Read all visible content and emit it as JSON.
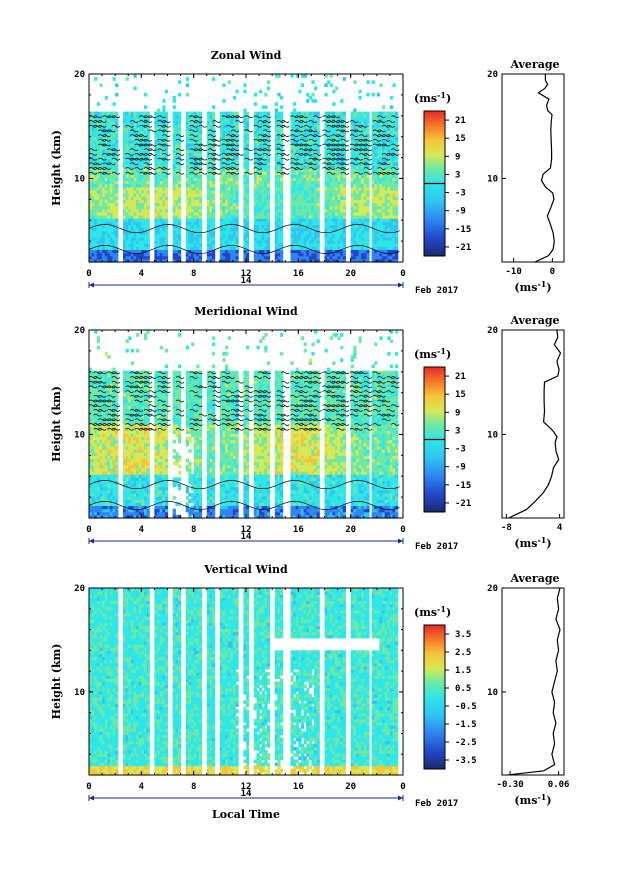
{
  "chart_data": [
    {
      "type": "heatmap",
      "title": "Zonal Wind",
      "ylabel": "Height (km)",
      "ylim": [
        2,
        20
      ],
      "yticks": [
        "20",
        "10"
      ],
      "xlim": [
        0,
        24
      ],
      "xticks": [
        "0",
        "4",
        "8",
        "12",
        "16",
        "20",
        "0"
      ],
      "date_label": "14",
      "month_label": "Feb 2017",
      "colorbar": {
        "unit": "(ms",
        "unit_sup": "-1",
        "unit_close": ")",
        "ticks": [
          "21",
          "15",
          "9",
          "3",
          "-3",
          "-9",
          "-15",
          "-21"
        ],
        "range": [
          -24,
          24
        ],
        "zero_line": 0
      },
      "average_panel": {
        "title": "Average",
        "xlabel": "(ms",
        "xlabel_sup": "-1",
        "xlabel_close": ")",
        "xticks": [
          "-10",
          "0"
        ],
        "xlim": [
          -13,
          3
        ],
        "yticks": [
          "20",
          "10"
        ],
        "profile": [
          [
            2.0,
            -4.5
          ],
          [
            2.6,
            -1
          ],
          [
            3.2,
            0.2
          ],
          [
            4.0,
            0.5
          ],
          [
            4.8,
            0.2
          ],
          [
            5.6,
            -0.5
          ],
          [
            6.4,
            -1.3
          ],
          [
            7.2,
            -0.4
          ],
          [
            8.0,
            0.4
          ],
          [
            8.6,
            0.1
          ],
          [
            9.2,
            -1.8
          ],
          [
            9.8,
            -2.8
          ],
          [
            10.4,
            -2.4
          ],
          [
            11.0,
            -0.5
          ],
          [
            11.8,
            -0.2
          ],
          [
            12.6,
            -0.2
          ],
          [
            13.6,
            -0.3
          ],
          [
            14.6,
            -0.4
          ],
          [
            15.4,
            -0.3
          ],
          [
            16.1,
            -0.1
          ],
          [
            16.5,
            -1.2
          ],
          [
            17.0,
            -1.5
          ],
          [
            17.6,
            -0.9
          ],
          [
            18.2,
            -3.6
          ],
          [
            18.6,
            -2.0
          ],
          [
            19.0,
            -1.2
          ],
          [
            19.4,
            -1.8
          ],
          [
            20.0,
            -1.8
          ]
        ]
      }
    },
    {
      "type": "heatmap",
      "title": "Meridional Wind",
      "ylabel": "Height (km)",
      "ylim": [
        2,
        20
      ],
      "yticks": [
        "20",
        "10"
      ],
      "xlim": [
        0,
        24
      ],
      "xticks": [
        "0",
        "4",
        "8",
        "12",
        "16",
        "20",
        "0"
      ],
      "date_label": "14",
      "month_label": "Feb 2017",
      "colorbar": {
        "unit": "(ms",
        "unit_sup": "-1",
        "unit_close": ")",
        "ticks": [
          "21",
          "15",
          "9",
          "3",
          "-3",
          "-9",
          "-15",
          "-21"
        ],
        "range": [
          -24,
          24
        ],
        "zero_line": 0
      },
      "average_panel": {
        "title": "Average",
        "xlabel": "(ms",
        "xlabel_sup": "-1",
        "xlabel_close": ")",
        "xticks": [
          "-8",
          "4"
        ],
        "xlim": [
          -9,
          5
        ],
        "yticks": [
          "20",
          "10"
        ],
        "profile": [
          [
            2.0,
            -7.5
          ],
          [
            2.8,
            -3.5
          ],
          [
            3.6,
            -1.5
          ],
          [
            4.4,
            0.3
          ],
          [
            5.2,
            1.5
          ],
          [
            6.0,
            2.2
          ],
          [
            6.8,
            2.6
          ],
          [
            7.6,
            3.8
          ],
          [
            8.4,
            3.2
          ],
          [
            9.2,
            3.0
          ],
          [
            9.8,
            3.4
          ],
          [
            10.4,
            2.4
          ],
          [
            11.2,
            0.4
          ],
          [
            12.2,
            0.6
          ],
          [
            13.2,
            0.5
          ],
          [
            14.2,
            0.5
          ],
          [
            15.0,
            0.6
          ],
          [
            15.6,
            3.6
          ],
          [
            16.2,
            3.9
          ],
          [
            17.0,
            3.4
          ],
          [
            17.8,
            4.2
          ],
          [
            18.6,
            2.8
          ],
          [
            19.3,
            3.6
          ],
          [
            20.0,
            3.4
          ]
        ]
      }
    },
    {
      "type": "heatmap",
      "title": "Vertical Wind",
      "ylabel": "Height (km)",
      "ylim": [
        2,
        20
      ],
      "yticks": [
        "20",
        "10"
      ],
      "xlim": [
        0,
        24
      ],
      "xticks": [
        "0",
        "4",
        "8",
        "12",
        "16",
        "20",
        "0"
      ],
      "date_label": "14",
      "month_label": "Feb 2017",
      "xlabel": "Local Time",
      "colorbar": {
        "unit": "(ms",
        "unit_sup": "-1",
        "unit_close": ")",
        "ticks": [
          "3.5",
          "2.5",
          "1.5",
          "0.5",
          "-0.5",
          "-1.5",
          "-2.5",
          "-3.5"
        ],
        "range": [
          -4,
          4
        ],
        "zero_line": null
      },
      "average_panel": {
        "title": "Average",
        "xlabel": "(ms",
        "xlabel_sup": "-1",
        "xlabel_close": ")",
        "xticks": [
          "-0.30",
          "0.06"
        ],
        "xlim": [
          -0.36,
          0.1
        ],
        "yticks": [
          "20",
          "10"
        ],
        "profile": [
          [
            2.0,
            -0.32
          ],
          [
            2.4,
            -0.05
          ],
          [
            3.0,
            0.03
          ],
          [
            4.0,
            0.01
          ],
          [
            5.0,
            0.03
          ],
          [
            6.0,
            0.02
          ],
          [
            7.0,
            0.04
          ],
          [
            8.0,
            0.02
          ],
          [
            9.0,
            0.03
          ],
          [
            10.0,
            0.01
          ],
          [
            11.0,
            0.03
          ],
          [
            12.0,
            0.05
          ],
          [
            13.0,
            0.04
          ],
          [
            14.0,
            0.06
          ],
          [
            15.0,
            0.05
          ],
          [
            16.0,
            0.07
          ],
          [
            17.0,
            0.04
          ],
          [
            18.0,
            0.06
          ],
          [
            19.0,
            0.05
          ],
          [
            20.0,
            0.07
          ]
        ]
      }
    }
  ]
}
